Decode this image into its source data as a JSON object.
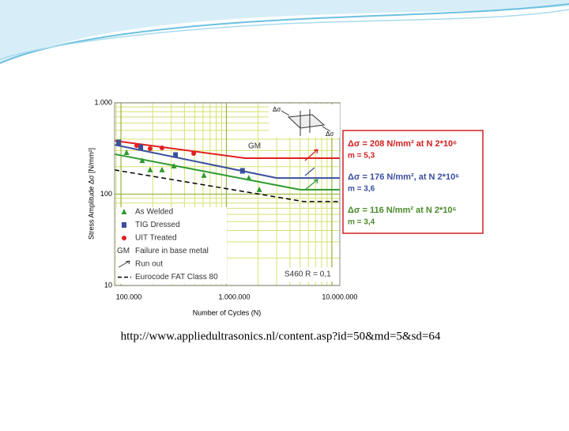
{
  "chart_data": {
    "type": "scatter",
    "xscale": "log",
    "yscale": "log",
    "xlabel": "Number of Cycles (N)",
    "ylabel": "Stress Amplitude Δσ [N/mm²]",
    "xlim": [
      87000,
      11900000
    ],
    "ylim": [
      10,
      1000
    ],
    "xticks": [
      {
        "value": 100000,
        "label": "100.000"
      },
      {
        "value": 1000000,
        "label": "1.000.000"
      },
      {
        "value": 10000000,
        "label": "10.000.000"
      }
    ],
    "yticks": [
      {
        "value": 10,
        "label": "10"
      },
      {
        "value": 100,
        "label": "100"
      },
      {
        "value": 1000,
        "label": "1.000"
      }
    ],
    "grid": true,
    "legend": "lower left",
    "series": [
      {
        "name": "As Welded",
        "color": "#2e9a2e",
        "marker": "triangle",
        "x": [
          113000,
          159000,
          189000,
          245000,
          318000,
          612000,
          1630000,
          2050000
        ],
        "values": [
          285,
          233,
          184,
          184,
          203,
          160,
          150,
          112
        ]
      },
      {
        "name": "TIG Dressed",
        "color": "#3a4fa0",
        "marker": "square",
        "x": [
          95000,
          154000,
          329000,
          1420000
        ],
        "values": [
          369,
          327,
          268,
          180
        ]
      },
      {
        "name": "UIT Treated",
        "color": "#e02020",
        "marker": "circle",
        "x": [
          141000,
          189000,
          245000,
          489000
        ],
        "values": [
          340,
          315,
          321,
          279
        ]
      },
      {
        "name": "Eurocode FAT Class 80",
        "color": "#000000",
        "marker": "dashed",
        "x": [
          87000,
          5400000,
          11900000
        ],
        "values": [
          184,
          83,
          83
        ]
      }
    ],
    "legend_notes": [
      {
        "symbol": "GM",
        "text": "Failure in base metal"
      },
      {
        "text": "Run out"
      }
    ],
    "curves": [
      {
        "color": "#e02020",
        "x": [
          87000,
          1500000,
          11900000
        ],
        "values": [
          384,
          248,
          248
        ]
      },
      {
        "color": "#3a4fa0",
        "x": [
          87000,
          3000000,
          11900000
        ],
        "values": [
          347,
          150,
          150
        ]
      },
      {
        "color": "#2e9a2e",
        "x": [
          87000,
          5000000,
          11900000
        ],
        "values": [
          274,
          112,
          112
        ]
      }
    ],
    "annotations": {
      "gm": "GM",
      "material": "S460 R = 0,1",
      "sketch": "Δσ"
    },
    "boxes": [
      {
        "color": "#d02020",
        "delta": "Δσ = 208 N/mm² at N 2*10⁶",
        "m": "m = 5,3"
      },
      {
        "color": "#3a4fa0",
        "delta": "Δσ = 176 N/mm², at N 2*10⁶",
        "m": "m = 3,6"
      },
      {
        "color": "#4a8a2a",
        "delta": "Δσ = 116 N/mm² at N 2*10⁶",
        "m": "m = 3,4"
      }
    ]
  },
  "caption": "http://www.appliedultrasonics.nl/content.asp?id=50&md=5&sd=64"
}
